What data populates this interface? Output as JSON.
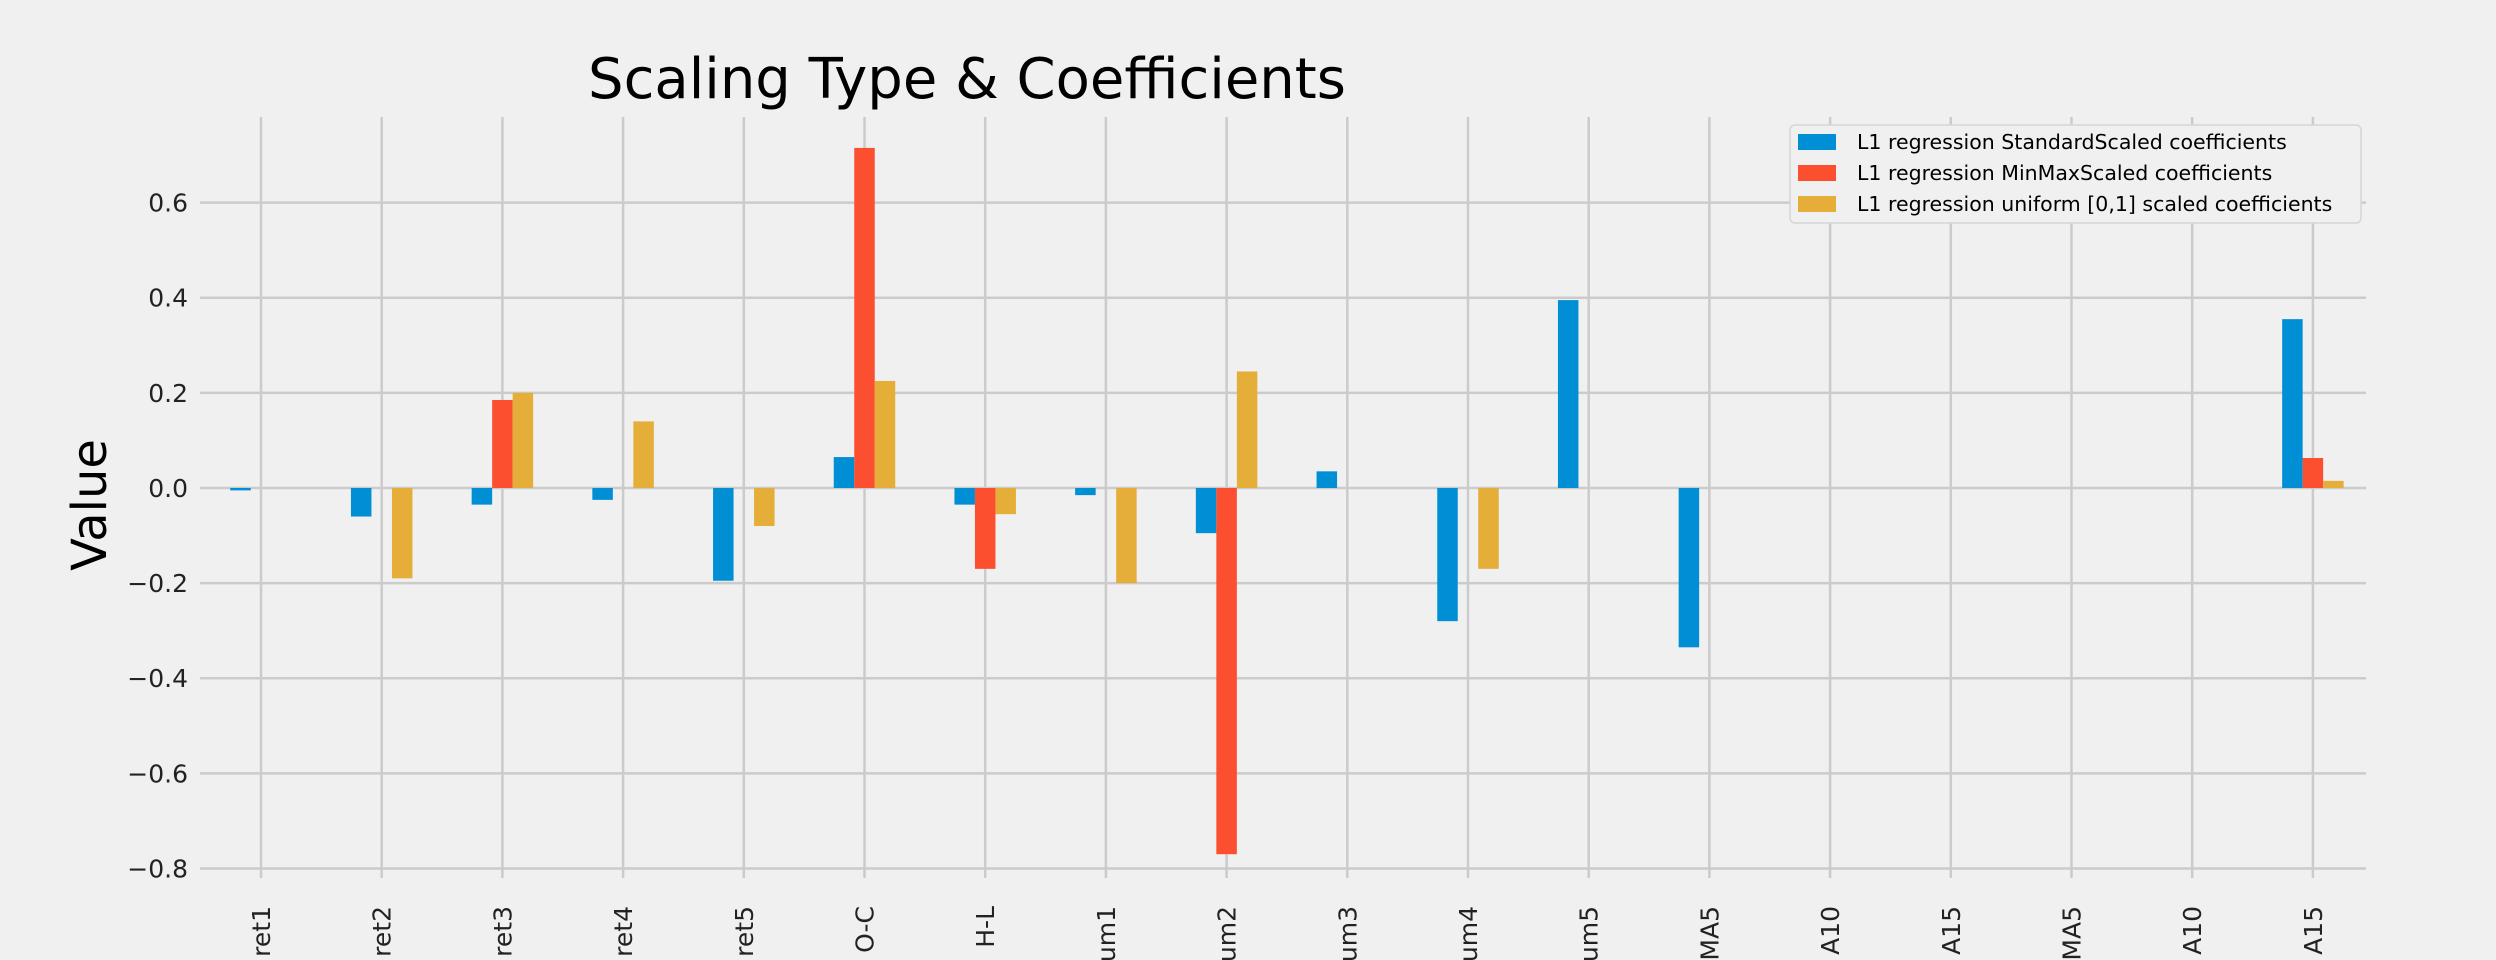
{
  "chart_data": {
    "type": "bar",
    "title": "Scaling Type & Coefficients",
    "xlabel": "",
    "ylabel": "Value",
    "ylim": [
      -0.82,
      0.78
    ],
    "yticks": [
      -0.8,
      -0.6,
      -0.4,
      -0.2,
      0.0,
      0.2,
      0.4,
      0.6
    ],
    "ytick_labels": [
      "−0.8",
      "−0.6",
      "−0.4",
      "−0.2",
      "0.0",
      "0.2",
      "0.4",
      "0.6"
    ],
    "grid": true,
    "legend_position": "top-right",
    "categories": [
      "ret1",
      "ret2",
      "ret3",
      "ret4",
      "ret5",
      "O-C",
      "H-L",
      "um1",
      "um2",
      "um3",
      "um4",
      "um5",
      "MA5",
      "A10",
      "A15",
      "MA5",
      "A10",
      "A15"
    ],
    "series": [
      {
        "name": "L1 regression StandardScaled coefficients",
        "color": "#008fd5",
        "values": [
          -0.005,
          -0.06,
          -0.035,
          -0.025,
          -0.195,
          0.065,
          -0.035,
          -0.015,
          -0.095,
          0.035,
          -0.28,
          0.395,
          -0.335,
          0.0,
          0.0,
          0.0,
          0.0,
          0.355
        ]
      },
      {
        "name": "L1 regression MinMaxScaled coefficients",
        "color": "#fc4f30",
        "values": [
          0.0,
          0.0,
          0.185,
          0.0,
          0.0,
          0.715,
          -0.17,
          0.0,
          -0.77,
          0.0,
          0.0,
          0.0,
          0.0,
          0.0,
          0.0,
          0.0,
          0.0,
          0.063
        ]
      },
      {
        "name": "L1 regression uniform [0,1] scaled coefficients",
        "color": "#e5ae38",
        "values": [
          0.0,
          -0.19,
          0.2,
          0.14,
          -0.08,
          0.225,
          -0.055,
          -0.2,
          0.245,
          0.0,
          -0.17,
          0.0,
          0.0,
          0.0,
          0.0,
          0.0,
          0.0,
          0.015
        ]
      }
    ]
  },
  "colors": {
    "background": "#f0f0f0",
    "grid": "#cbcbcb",
    "legend_border": "#d6d6d6"
  }
}
